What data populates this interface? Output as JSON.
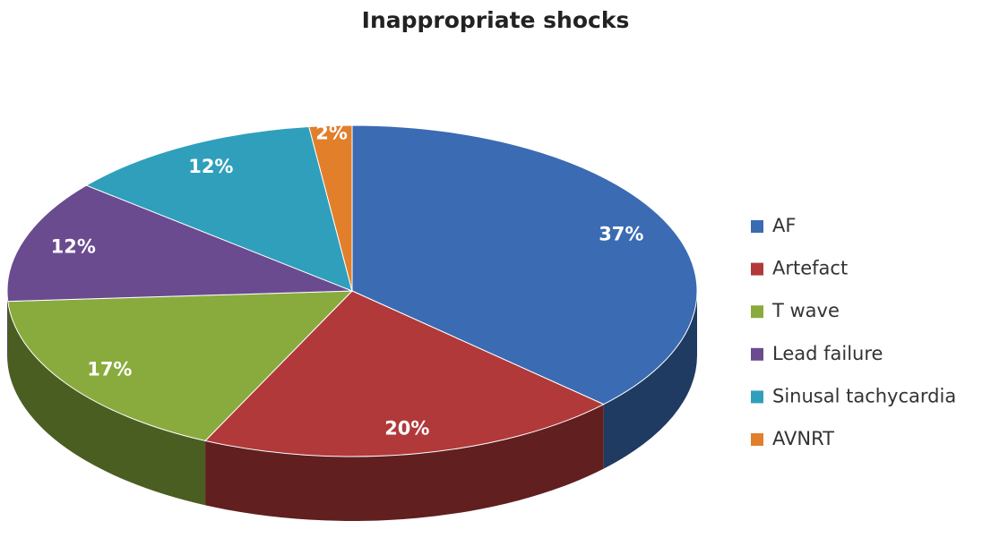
{
  "chart_data": {
    "type": "pie",
    "title": "Inappropriate shocks",
    "categories": [
      "AF",
      "Artefact",
      "T wave",
      "Lead failure",
      "Sinusal tachycardia",
      "AVNRT"
    ],
    "values": [
      37,
      20,
      17,
      12,
      12,
      2
    ],
    "value_labels": [
      "37%",
      "20%",
      "17%",
      "12%",
      "12%",
      "2%"
    ],
    "colors": [
      "#3b6bb2",
      "#b1393a",
      "#89ab3d",
      "#6a4b8f",
      "#2f9fbc",
      "#e27f2b"
    ],
    "legend": "right"
  }
}
